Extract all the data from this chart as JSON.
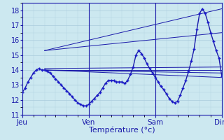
{
  "title": "",
  "xlabel": "Température (°c)",
  "ylabel": "",
  "xlim": [
    0,
    72
  ],
  "ylim": [
    11,
    18.5
  ],
  "yticks": [
    11,
    12,
    13,
    14,
    15,
    16,
    17,
    18
  ],
  "day_ticks": [
    0,
    24,
    48,
    72
  ],
  "day_labels": [
    "Jeu",
    "Ven",
    "Sam",
    "Dim"
  ],
  "bg_color": "#cce8f0",
  "grid_color": "#aaccdd",
  "line_color": "#1a1aaa",
  "marker_color": "#1a1acc",
  "main_curve": [
    [
      0,
      12.5
    ],
    [
      1,
      12.8
    ],
    [
      2,
      13.2
    ],
    [
      3,
      13.5
    ],
    [
      4,
      13.8
    ],
    [
      5,
      14.0
    ],
    [
      6,
      14.1
    ],
    [
      7,
      14.0
    ],
    [
      8,
      14.0
    ],
    [
      9,
      13.9
    ],
    [
      10,
      13.8
    ],
    [
      11,
      13.6
    ],
    [
      12,
      13.4
    ],
    [
      13,
      13.2
    ],
    [
      14,
      13.0
    ],
    [
      15,
      12.8
    ],
    [
      16,
      12.6
    ],
    [
      17,
      12.4
    ],
    [
      18,
      12.2
    ],
    [
      19,
      12.0
    ],
    [
      20,
      11.8
    ],
    [
      21,
      11.7
    ],
    [
      22,
      11.6
    ],
    [
      23,
      11.6
    ],
    [
      24,
      11.7
    ],
    [
      25,
      11.9
    ],
    [
      26,
      12.1
    ],
    [
      27,
      12.3
    ],
    [
      28,
      12.5
    ],
    [
      29,
      12.8
    ],
    [
      30,
      13.1
    ],
    [
      31,
      13.3
    ],
    [
      32,
      13.3
    ],
    [
      33,
      13.3
    ],
    [
      34,
      13.2
    ],
    [
      35,
      13.2
    ],
    [
      36,
      13.2
    ],
    [
      37,
      13.1
    ],
    [
      38,
      13.3
    ],
    [
      39,
      13.7
    ],
    [
      40,
      14.2
    ],
    [
      41,
      15.0
    ],
    [
      42,
      15.3
    ],
    [
      43,
      15.1
    ],
    [
      44,
      14.8
    ],
    [
      45,
      14.4
    ],
    [
      46,
      14.1
    ],
    [
      47,
      13.8
    ],
    [
      48,
      13.5
    ],
    [
      49,
      13.2
    ],
    [
      50,
      12.9
    ],
    [
      51,
      12.7
    ],
    [
      52,
      12.4
    ],
    [
      53,
      12.1
    ],
    [
      54,
      11.9
    ],
    [
      55,
      11.8
    ],
    [
      56,
      11.9
    ],
    [
      57,
      12.3
    ],
    [
      58,
      12.8
    ],
    [
      59,
      13.3
    ],
    [
      60,
      13.9
    ],
    [
      61,
      14.6
    ],
    [
      62,
      15.4
    ],
    [
      63,
      16.7
    ],
    [
      64,
      17.8
    ],
    [
      65,
      18.1
    ],
    [
      66,
      17.8
    ],
    [
      67,
      17.2
    ],
    [
      68,
      16.5
    ],
    [
      69,
      15.9
    ],
    [
      70,
      15.3
    ],
    [
      71,
      14.8
    ],
    [
      72,
      13.6
    ]
  ],
  "forecast_lines": [
    [
      [
        8,
        14.0
      ],
      [
        72,
        13.5
      ]
    ],
    [
      [
        8,
        14.0
      ],
      [
        72,
        13.8
      ]
    ],
    [
      [
        8,
        14.0
      ],
      [
        72,
        14.0
      ]
    ],
    [
      [
        8,
        14.1
      ],
      [
        72,
        14.2
      ]
    ],
    [
      [
        8,
        15.3
      ],
      [
        72,
        16.5
      ]
    ],
    [
      [
        8,
        15.3
      ],
      [
        72,
        18.1
      ]
    ]
  ]
}
